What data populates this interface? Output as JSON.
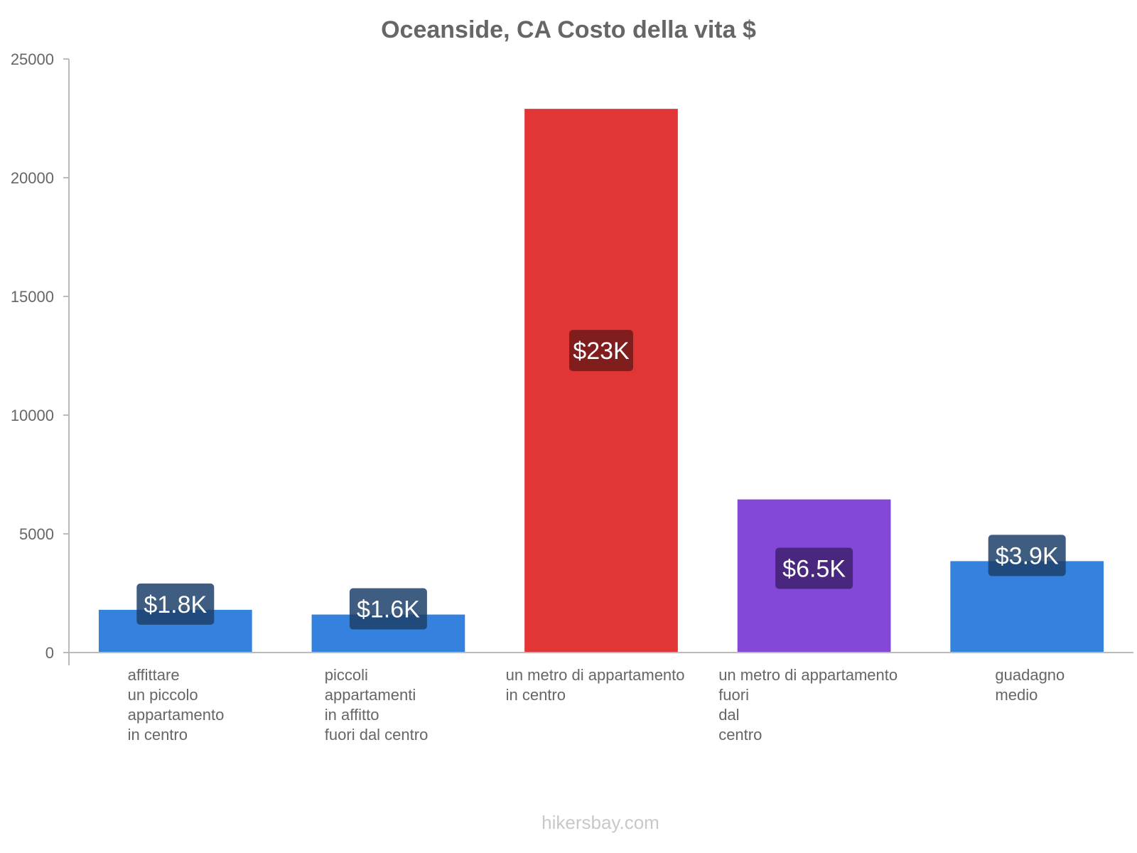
{
  "chart_data": {
    "type": "bar",
    "title": "Oceanside, CA Costo della vita $",
    "xlabel": "",
    "ylabel": "",
    "ylim": [
      0,
      25000
    ],
    "yticks": [
      0,
      5000,
      10000,
      15000,
      20000,
      25000
    ],
    "grid": false,
    "categories": [
      [
        "affittare",
        "un piccolo",
        "appartamento",
        "in centro"
      ],
      [
        "piccoli",
        "appartamenti",
        "in affitto",
        "fuori dal centro"
      ],
      [
        "un metro di appartamento",
        "in centro"
      ],
      [
        "un metro di appartamento",
        "fuori",
        "dal",
        "centro"
      ],
      [
        "guadagno",
        "medio"
      ]
    ],
    "values": [
      1800,
      1600,
      22900,
      6450,
      3850
    ],
    "value_labels": [
      "$1.8K",
      "$1.6K",
      "$23K",
      "$6.5K",
      "$3.9K"
    ],
    "colors": [
      "#3482DE",
      "#3482DE",
      "#E23535",
      "#8448D8",
      "#3482DE"
    ],
    "label_bg_colors": [
      "#1D3F6B",
      "#1D3F6B",
      "#6E1A1A",
      "#3E2270",
      "#1D3F6B"
    ]
  },
  "footer": "hikersbay.com"
}
